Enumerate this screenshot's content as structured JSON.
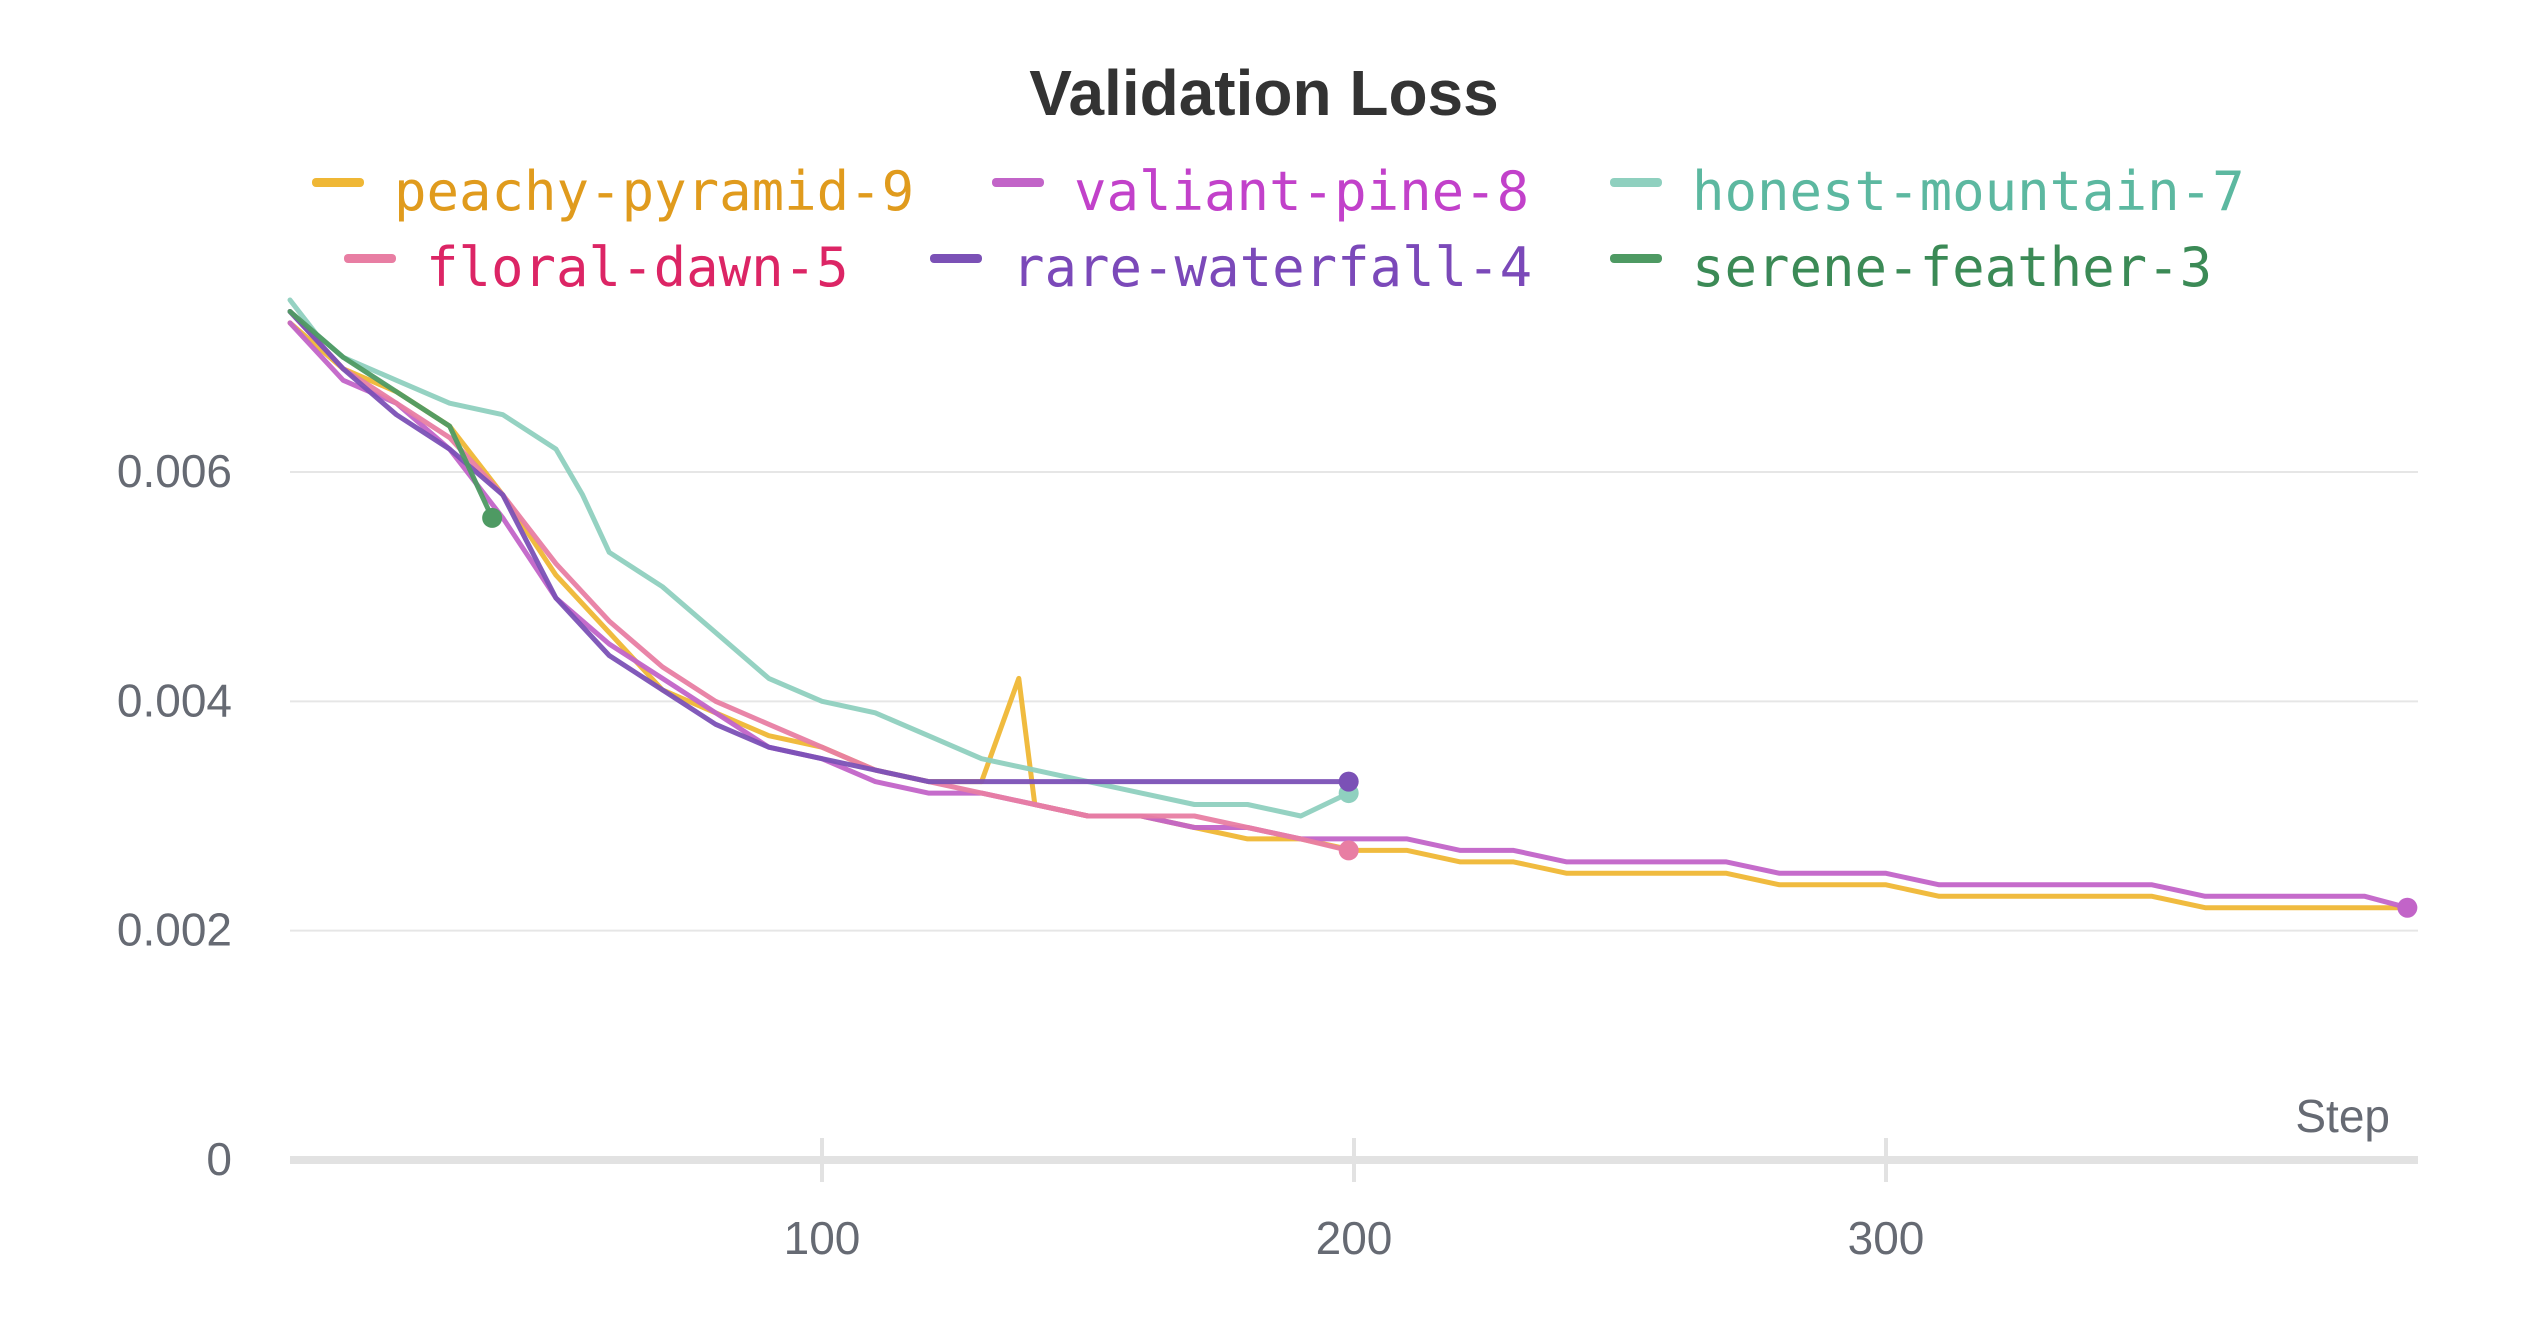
{
  "chart_data": {
    "type": "line",
    "title": "Validation Loss",
    "xlabel": "Step",
    "ylabel": "",
    "xlim": [
      0,
      400
    ],
    "ylim": [
      0,
      0.0075
    ],
    "x_ticks": [
      100,
      200,
      300
    ],
    "x_tick_labels": [
      "100",
      "200",
      "300"
    ],
    "y_ticks": [
      0,
      0.002,
      0.004,
      0.006
    ],
    "y_tick_labels": [
      "0",
      "0.002",
      "0.004",
      "0.006"
    ],
    "grid": true,
    "legend_position": "top",
    "series": [
      {
        "name": "peachy-pyramid-9",
        "color": "#efb735",
        "text_color": "#e09b1d",
        "end_marker": false,
        "points": [
          [
            0,
            0.0073
          ],
          [
            10,
            0.0069
          ],
          [
            20,
            0.0067
          ],
          [
            30,
            0.0064
          ],
          [
            40,
            0.0058
          ],
          [
            50,
            0.0051
          ],
          [
            60,
            0.0046
          ],
          [
            70,
            0.0041
          ],
          [
            80,
            0.0039
          ],
          [
            90,
            0.0037
          ],
          [
            100,
            0.0036
          ],
          [
            110,
            0.0034
          ],
          [
            120,
            0.0033
          ],
          [
            130,
            0.0033
          ],
          [
            137,
            0.0042
          ],
          [
            140,
            0.0031
          ],
          [
            150,
            0.003
          ],
          [
            160,
            0.003
          ],
          [
            170,
            0.0029
          ],
          [
            180,
            0.0028
          ],
          [
            190,
            0.0028
          ],
          [
            200,
            0.0027
          ],
          [
            210,
            0.0027
          ],
          [
            220,
            0.0026
          ],
          [
            230,
            0.0026
          ],
          [
            240,
            0.0025
          ],
          [
            250,
            0.0025
          ],
          [
            260,
            0.0025
          ],
          [
            270,
            0.0025
          ],
          [
            280,
            0.0024
          ],
          [
            290,
            0.0024
          ],
          [
            300,
            0.0024
          ],
          [
            310,
            0.0023
          ],
          [
            320,
            0.0023
          ],
          [
            330,
            0.0023
          ],
          [
            340,
            0.0023
          ],
          [
            350,
            0.0023
          ],
          [
            360,
            0.0022
          ],
          [
            370,
            0.0022
          ],
          [
            380,
            0.0022
          ],
          [
            390,
            0.0022
          ],
          [
            398,
            0.0022
          ]
        ]
      },
      {
        "name": "valiant-pine-8",
        "color": "#c264c8",
        "text_color": "#c241ca",
        "end_marker": true,
        "points": [
          [
            0,
            0.0073
          ],
          [
            10,
            0.0068
          ],
          [
            20,
            0.0066
          ],
          [
            30,
            0.0062
          ],
          [
            40,
            0.0056
          ],
          [
            50,
            0.0049
          ],
          [
            60,
            0.0045
          ],
          [
            70,
            0.0042
          ],
          [
            80,
            0.0039
          ],
          [
            90,
            0.0036
          ],
          [
            100,
            0.0035
          ],
          [
            110,
            0.0033
          ],
          [
            120,
            0.0032
          ],
          [
            130,
            0.0032
          ],
          [
            140,
            0.0031
          ],
          [
            150,
            0.003
          ],
          [
            160,
            0.003
          ],
          [
            170,
            0.0029
          ],
          [
            180,
            0.0029
          ],
          [
            190,
            0.0028
          ],
          [
            200,
            0.0028
          ],
          [
            210,
            0.0028
          ],
          [
            220,
            0.0027
          ],
          [
            230,
            0.0027
          ],
          [
            240,
            0.0026
          ],
          [
            250,
            0.0026
          ],
          [
            260,
            0.0026
          ],
          [
            270,
            0.0026
          ],
          [
            280,
            0.0025
          ],
          [
            290,
            0.0025
          ],
          [
            300,
            0.0025
          ],
          [
            310,
            0.0024
          ],
          [
            320,
            0.0024
          ],
          [
            330,
            0.0024
          ],
          [
            340,
            0.0024
          ],
          [
            350,
            0.0024
          ],
          [
            360,
            0.0023
          ],
          [
            370,
            0.0023
          ],
          [
            380,
            0.0023
          ],
          [
            390,
            0.0023
          ],
          [
            398,
            0.0022
          ]
        ]
      },
      {
        "name": "honest-mountain-7",
        "color": "#8fd0bf",
        "text_color": "#5cb8a0",
        "end_marker": true,
        "points": [
          [
            0,
            0.0075
          ],
          [
            5,
            0.0072
          ],
          [
            10,
            0.007
          ],
          [
            20,
            0.0068
          ],
          [
            30,
            0.0066
          ],
          [
            40,
            0.0065
          ],
          [
            50,
            0.0062
          ],
          [
            55,
            0.0058
          ],
          [
            60,
            0.0053
          ],
          [
            70,
            0.005
          ],
          [
            80,
            0.0046
          ],
          [
            90,
            0.0042
          ],
          [
            100,
            0.004
          ],
          [
            110,
            0.0039
          ],
          [
            120,
            0.0037
          ],
          [
            130,
            0.0035
          ],
          [
            140,
            0.0034
          ],
          [
            150,
            0.0033
          ],
          [
            160,
            0.0032
          ],
          [
            170,
            0.0031
          ],
          [
            180,
            0.0031
          ],
          [
            190,
            0.003
          ],
          [
            199,
            0.0032
          ]
        ]
      },
      {
        "name": "floral-dawn-5",
        "color": "#e87ea3",
        "text_color": "#dc2565",
        "end_marker": true,
        "points": [
          [
            0,
            0.0074
          ],
          [
            10,
            0.0069
          ],
          [
            20,
            0.0066
          ],
          [
            30,
            0.0063
          ],
          [
            40,
            0.0058
          ],
          [
            50,
            0.0052
          ],
          [
            60,
            0.0047
          ],
          [
            70,
            0.0043
          ],
          [
            80,
            0.004
          ],
          [
            90,
            0.0038
          ],
          [
            100,
            0.0036
          ],
          [
            110,
            0.0034
          ],
          [
            120,
            0.0033
          ],
          [
            130,
            0.0032
          ],
          [
            140,
            0.0031
          ],
          [
            150,
            0.003
          ],
          [
            160,
            0.003
          ],
          [
            170,
            0.003
          ],
          [
            180,
            0.0029
          ],
          [
            190,
            0.0028
          ],
          [
            199,
            0.0027
          ]
        ]
      },
      {
        "name": "rare-waterfall-4",
        "color": "#7b51b6",
        "text_color": "#7b49b9",
        "end_marker": true,
        "points": [
          [
            0,
            0.0074
          ],
          [
            10,
            0.0069
          ],
          [
            20,
            0.0065
          ],
          [
            30,
            0.0062
          ],
          [
            40,
            0.0058
          ],
          [
            50,
            0.0049
          ],
          [
            60,
            0.0044
          ],
          [
            70,
            0.0041
          ],
          [
            80,
            0.0038
          ],
          [
            90,
            0.0036
          ],
          [
            100,
            0.0035
          ],
          [
            110,
            0.0034
          ],
          [
            120,
            0.0033
          ],
          [
            130,
            0.0033
          ],
          [
            140,
            0.0033
          ],
          [
            150,
            0.0033
          ],
          [
            160,
            0.0033
          ],
          [
            170,
            0.0033
          ],
          [
            180,
            0.0033
          ],
          [
            190,
            0.0033
          ],
          [
            199,
            0.0033
          ]
        ]
      },
      {
        "name": "serene-feather-3",
        "color": "#4e9a63",
        "text_color": "#3b8a56",
        "end_marker": true,
        "points": [
          [
            0,
            0.0074
          ],
          [
            10,
            0.007
          ],
          [
            20,
            0.0067
          ],
          [
            30,
            0.0064
          ],
          [
            38,
            0.0056
          ]
        ]
      }
    ]
  }
}
